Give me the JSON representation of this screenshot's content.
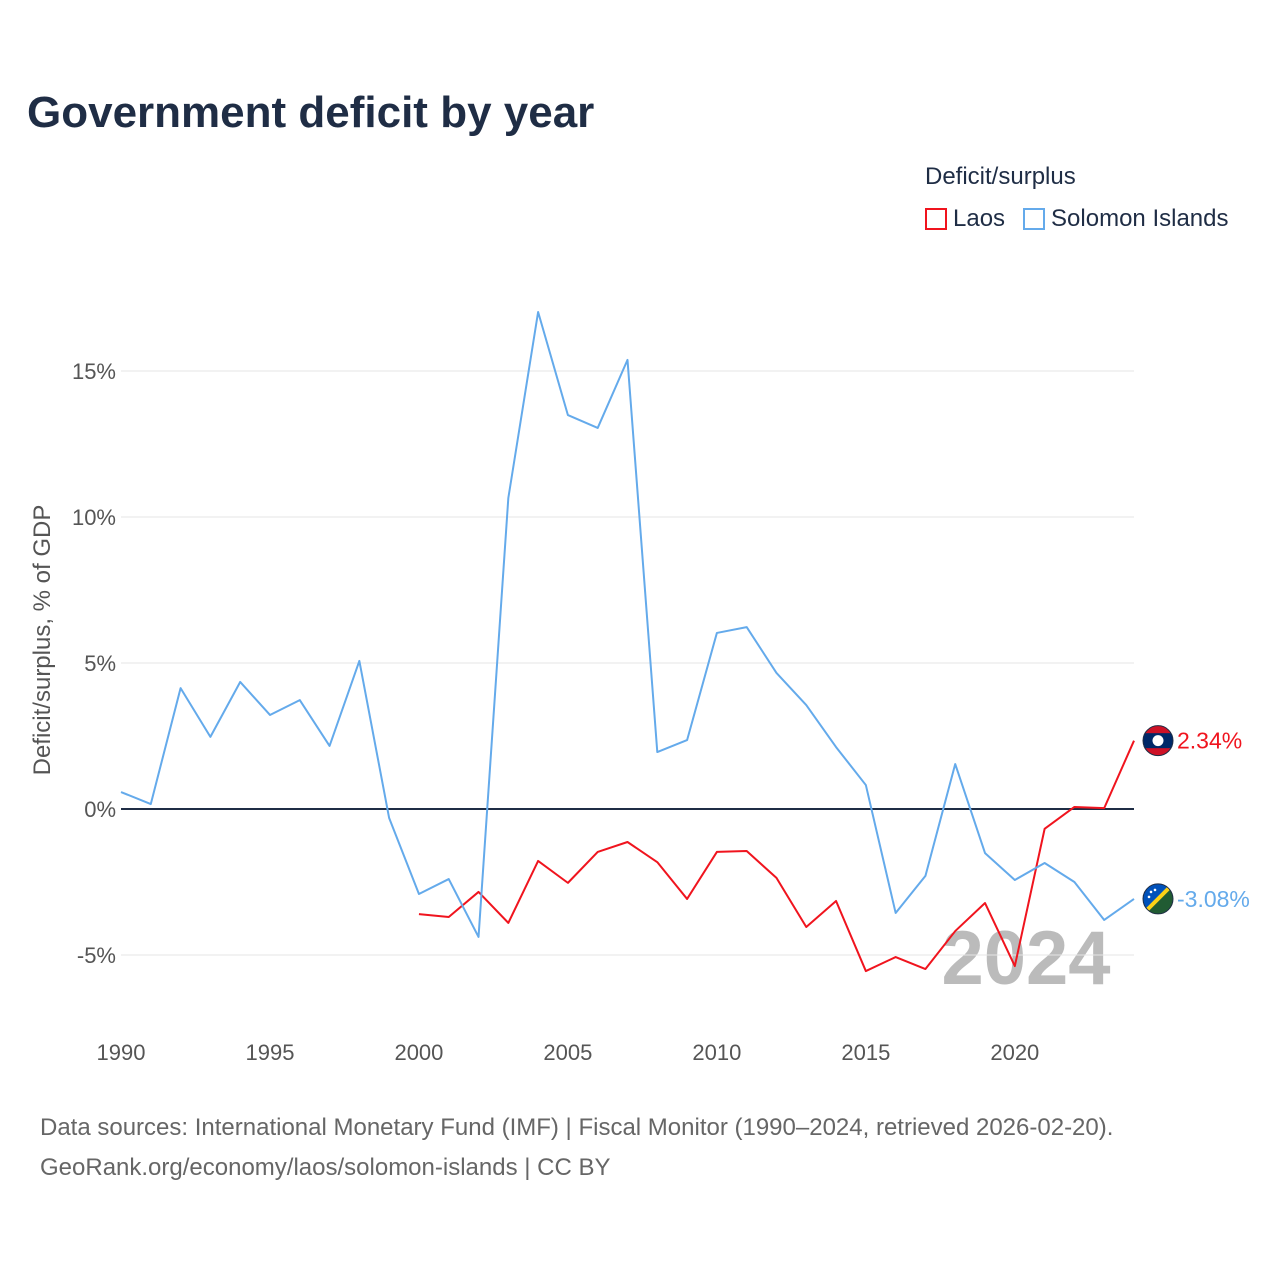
{
  "title": "Government deficit by year",
  "legend_title": "Deficit/surplus",
  "footer": {
    "line1": "Data sources: International Monetary Fund (IMF) | Fiscal Monitor (1990–2024, retrieved 2026-02-20).",
    "line2": "GeoRank.org/economy/laos/solomon-islands | CC BY"
  },
  "watermark_year": "2024",
  "chart_data": {
    "type": "line",
    "title": "Government deficit by year",
    "ylabel": "Deficit/surplus, % of GDP",
    "xlabel": "",
    "xlim": [
      1990,
      2024
    ],
    "ylim": [
      -7,
      18
    ],
    "xticks": [
      1990,
      1995,
      2000,
      2005,
      2010,
      2015,
      2020
    ],
    "xtick_labels": [
      "1990",
      "1995",
      "2000",
      "2005",
      "2010",
      "2015",
      "2020"
    ],
    "yticks": [
      -5,
      0,
      5,
      10,
      15
    ],
    "ytick_labels": [
      "-5%",
      "0%",
      "5%",
      "10%",
      "15%"
    ],
    "grid": true,
    "legend_position": "top-right",
    "series": [
      {
        "name": "Laos",
        "color": "#f0141e",
        "end_label": "2.34%",
        "x": [
          2000,
          2001,
          2002,
          2003,
          2004,
          2005,
          2006,
          2007,
          2008,
          2009,
          2010,
          2011,
          2012,
          2013,
          2014,
          2015,
          2016,
          2017,
          2018,
          2019,
          2020,
          2021,
          2022,
          2023,
          2024
        ],
        "values": [
          -3.6,
          -3.7,
          -2.84,
          -3.9,
          -1.78,
          -2.53,
          -1.47,
          -1.13,
          -1.82,
          -3.08,
          -1.47,
          -1.44,
          -2.36,
          -4.04,
          -3.15,
          -5.55,
          -5.07,
          -5.48,
          -4.18,
          -3.22,
          -5.38,
          -0.68,
          0.07,
          0.03,
          2.34
        ]
      },
      {
        "name": "Solomon Islands",
        "color": "#64aaeb",
        "end_label": "-3.08%",
        "x": [
          1990,
          1991,
          1992,
          1993,
          1994,
          1995,
          1996,
          1997,
          1998,
          1999,
          2000,
          2001,
          2002,
          2003,
          2004,
          2005,
          2006,
          2007,
          2008,
          2009,
          2010,
          2011,
          2012,
          2013,
          2014,
          2015,
          2016,
          2017,
          2018,
          2019,
          2020,
          2021,
          2022,
          2023,
          2024
        ],
        "values": [
          0.58,
          0.17,
          4.14,
          2.47,
          4.35,
          3.22,
          3.73,
          2.16,
          5.07,
          -0.31,
          -2.91,
          -2.4,
          -4.38,
          10.65,
          17.02,
          13.49,
          13.05,
          15.38,
          1.95,
          2.36,
          6.03,
          6.23,
          4.66,
          3.56,
          2.12,
          0.82,
          -3.56,
          -2.29,
          1.54,
          -1.51,
          -2.43,
          -1.85,
          -2.5,
          -3.8,
          -3.08
        ]
      }
    ]
  }
}
